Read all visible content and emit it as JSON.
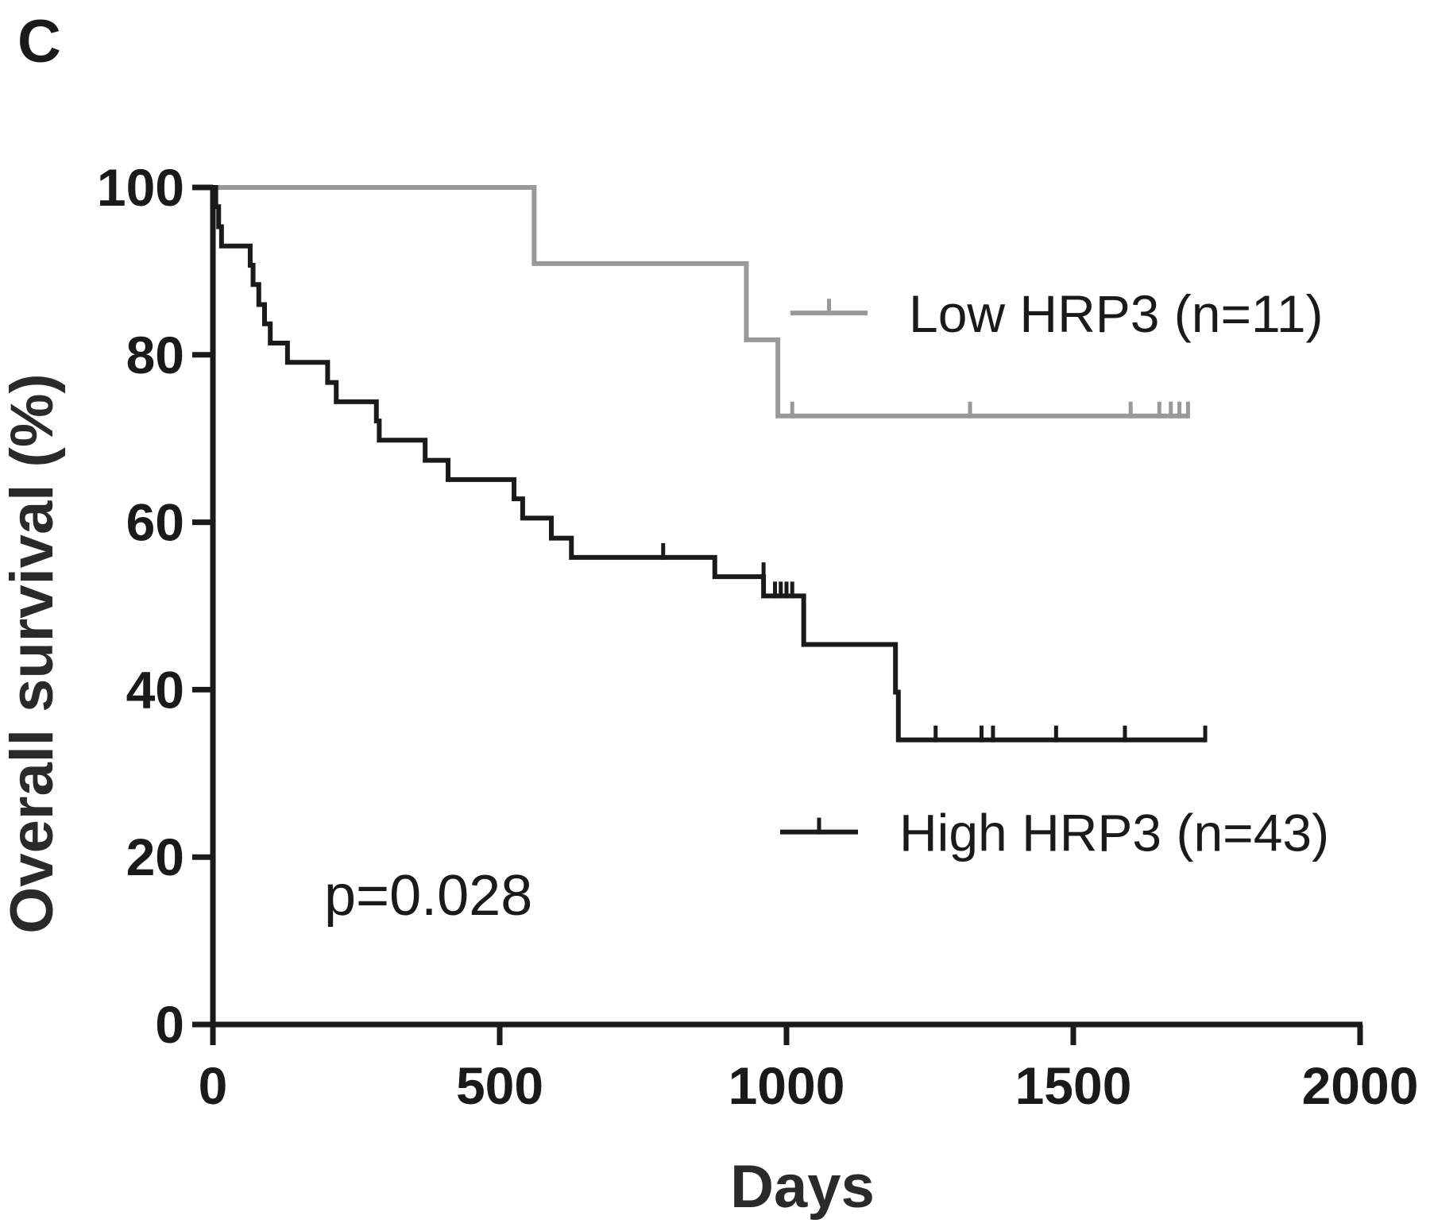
{
  "panel_label": "C",
  "chart_data": {
    "type": "line",
    "subtype": "kaplan-meier",
    "title": "",
    "xlabel": "Days",
    "ylabel": "Overall survival (%)",
    "xlim": [
      0,
      2000
    ],
    "ylim": [
      0,
      100
    ],
    "x_ticks": [
      0,
      500,
      1000,
      1500,
      2000
    ],
    "y_ticks": [
      0,
      20,
      40,
      60,
      80,
      100
    ],
    "x_tick_labels": [
      "0",
      "500",
      "1000",
      "1500",
      "2000"
    ],
    "y_tick_labels": [
      "0",
      "20",
      "40",
      "60",
      "80",
      "100"
    ],
    "grid": false,
    "legend_position": "right",
    "annotation": "p=0.028",
    "series": [
      {
        "name": "Low HRP3 (n=11)",
        "color": "#999999",
        "legend_y": 85,
        "steps": [
          [
            0,
            100
          ],
          [
            560,
            90.9
          ],
          [
            930,
            81.8
          ],
          [
            985,
            72.7
          ],
          [
            1700,
            72.7
          ]
        ],
        "censored": [
          [
            1010,
            72.7
          ],
          [
            1320,
            72.7
          ],
          [
            1600,
            72.7
          ],
          [
            1650,
            72.7
          ],
          [
            1670,
            72.7
          ],
          [
            1685,
            72.7
          ],
          [
            1700,
            72.7
          ]
        ]
      },
      {
        "name": "High HRP3 (n=43)",
        "color": "#1a1a1a",
        "legend_y": 23,
        "steps": [
          [
            0,
            100
          ],
          [
            5,
            97.7
          ],
          [
            10,
            95.3
          ],
          [
            15,
            93.0
          ],
          [
            65,
            90.7
          ],
          [
            70,
            88.4
          ],
          [
            80,
            86.0
          ],
          [
            90,
            83.7
          ],
          [
            100,
            81.4
          ],
          [
            130,
            79.1
          ],
          [
            200,
            76.7
          ],
          [
            215,
            74.4
          ],
          [
            285,
            72.1
          ],
          [
            290,
            69.8
          ],
          [
            370,
            67.4
          ],
          [
            410,
            65.1
          ],
          [
            525,
            62.8
          ],
          [
            540,
            60.5
          ],
          [
            590,
            58.1
          ],
          [
            625,
            55.8
          ],
          [
            875,
            53.5
          ],
          [
            960,
            51.2
          ],
          [
            1030,
            45.4
          ],
          [
            1190,
            39.7
          ],
          [
            1195,
            34.0
          ],
          [
            1730,
            34.0
          ]
        ],
        "censored": [
          [
            785,
            55.8
          ],
          [
            960,
            53.5
          ],
          [
            980,
            51.2
          ],
          [
            990,
            51.2
          ],
          [
            1000,
            51.2
          ],
          [
            1010,
            51.2
          ],
          [
            1260,
            34.0
          ],
          [
            1340,
            34.0
          ],
          [
            1360,
            34.0
          ],
          [
            1470,
            34.0
          ],
          [
            1590,
            34.0
          ],
          [
            1730,
            34.0
          ]
        ]
      }
    ]
  }
}
